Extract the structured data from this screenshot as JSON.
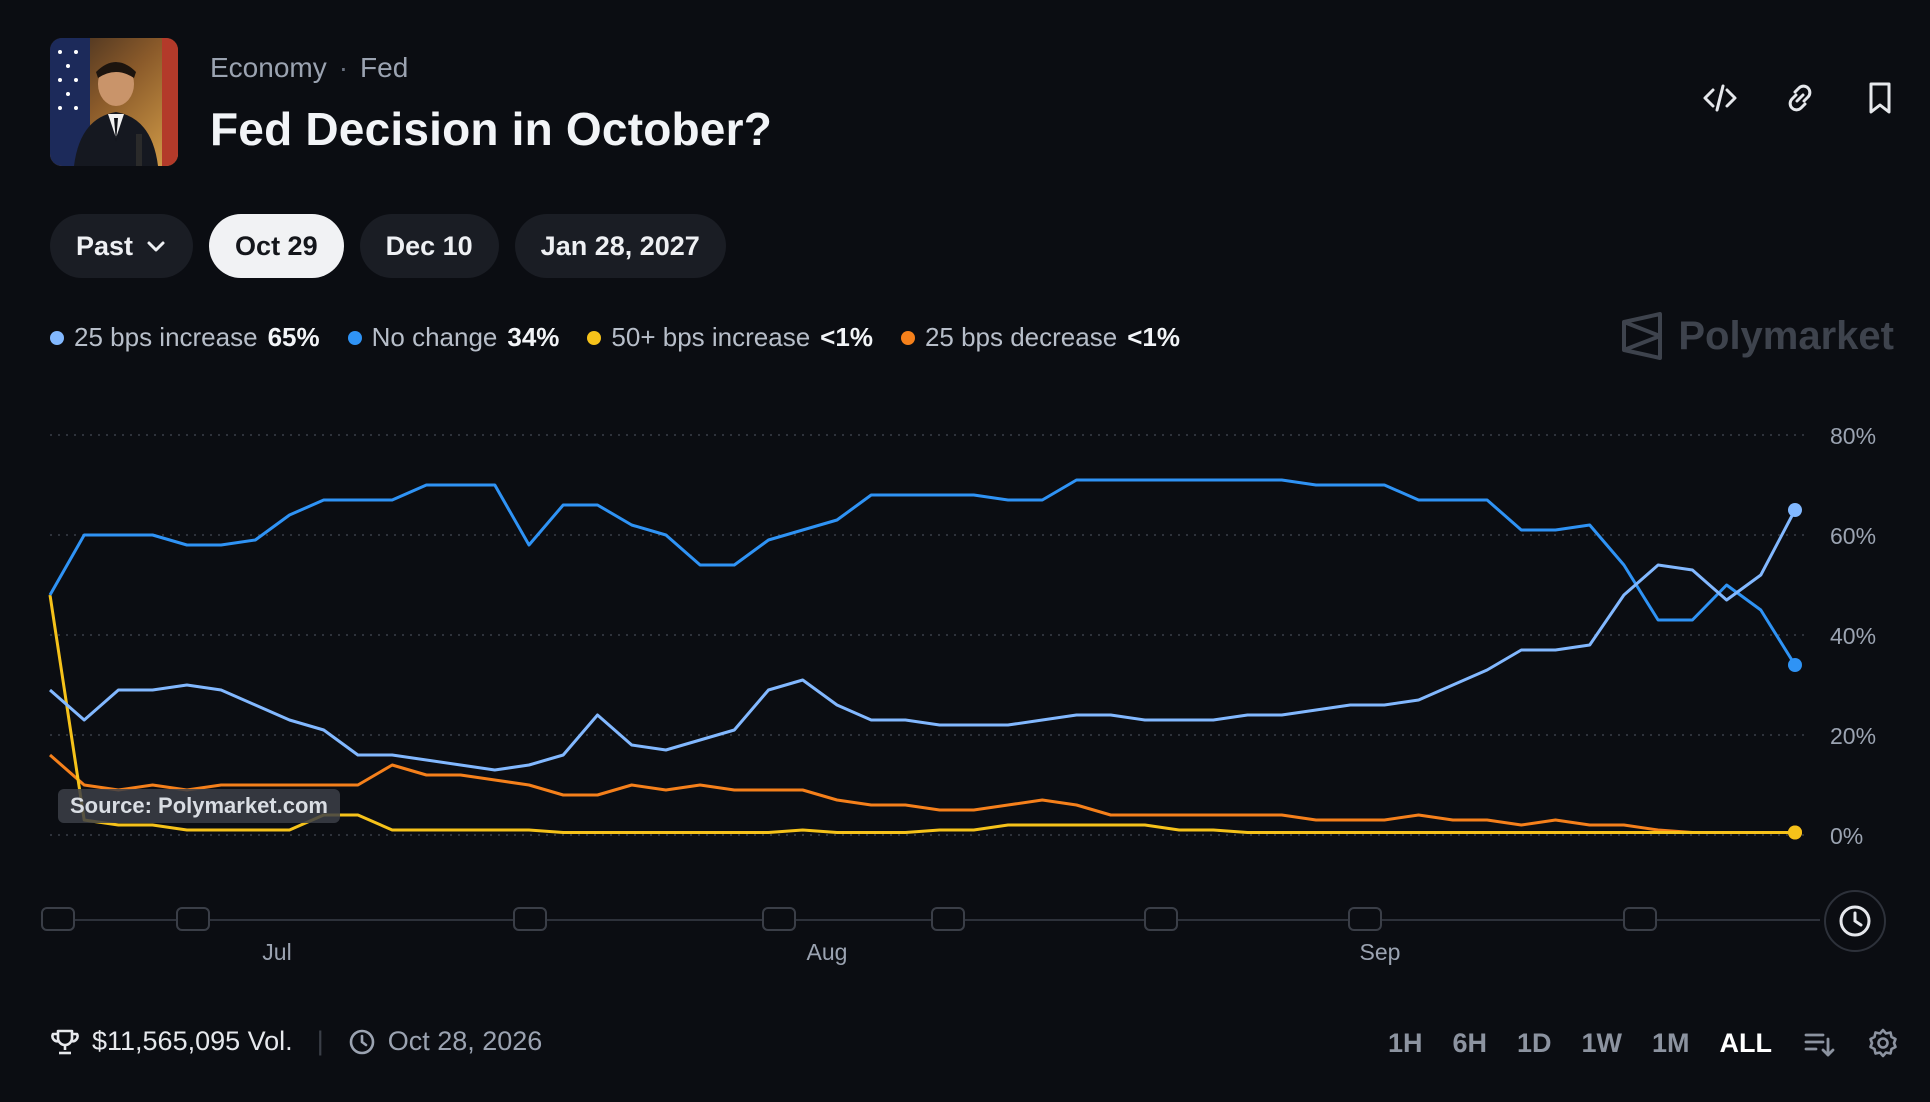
{
  "header": {
    "breadcrumb": [
      "Economy",
      "Fed"
    ],
    "title": "Fed Decision in October?",
    "actions": [
      "embed-icon",
      "link-icon",
      "bookmark-icon"
    ]
  },
  "pills": {
    "past_label": "Past",
    "dates": [
      "Oct 29",
      "Dec 10",
      "Jan 28, 2027"
    ],
    "active": "Oct 29"
  },
  "legend": [
    {
      "name": "25 bps increase",
      "value": "65%",
      "color": "#82b8ff"
    },
    {
      "name": "No change",
      "value": "34%",
      "color": "#2f93f5"
    },
    {
      "name": "50+ bps increase",
      "value": "<1%",
      "color": "#f6c21a"
    },
    {
      "name": "25 bps decrease",
      "value": "<1%",
      "color": "#f5801b"
    }
  ],
  "brand": "Polymarket",
  "source": "Source: Polymarket.com",
  "footer": {
    "volume": "$11,565,095 Vol.",
    "date": "Oct 28, 2026",
    "ranges": [
      "1H",
      "6H",
      "1D",
      "1W",
      "1M",
      "ALL"
    ],
    "active_range": "ALL"
  },
  "chart_data": {
    "type": "line",
    "x_ticks": [
      "Jul",
      "Aug",
      "Sep"
    ],
    "y_ticks": [
      "80%",
      "60%",
      "40%",
      "20%",
      "0%"
    ],
    "ylim": [
      0,
      80
    ],
    "grid": true,
    "legend_position": "top-left",
    "series": [
      {
        "name": "25 bps increase",
        "color": "#82b8ff",
        "values": [
          29,
          23,
          29,
          29,
          30,
          29,
          26,
          23,
          21,
          16,
          16,
          15,
          14,
          13,
          14,
          16,
          24,
          18,
          17,
          19,
          21,
          29,
          31,
          26,
          23,
          23,
          22,
          22,
          22,
          23,
          24,
          24,
          23,
          23,
          23,
          24,
          24,
          25,
          26,
          26,
          27,
          30,
          33,
          37,
          37,
          38,
          48,
          54,
          53,
          47,
          52,
          65
        ]
      },
      {
        "name": "No change",
        "color": "#2f93f5",
        "values": [
          48,
          60,
          60,
          60,
          58,
          58,
          59,
          64,
          67,
          67,
          67,
          70,
          70,
          70,
          58,
          66,
          66,
          62,
          60,
          54,
          54,
          59,
          61,
          63,
          68,
          68,
          68,
          68,
          67,
          67,
          71,
          71,
          71,
          71,
          71,
          71,
          71,
          70,
          70,
          70,
          67,
          67,
          67,
          61,
          61,
          62,
          54,
          43,
          43,
          50,
          45,
          34
        ]
      },
      {
        "name": "50+ bps increase",
        "color": "#f6c21a",
        "values": [
          48,
          3,
          2,
          2,
          1,
          1,
          1,
          1,
          4,
          4,
          1,
          1,
          1,
          1,
          1,
          0.5,
          0.5,
          0.5,
          0.5,
          0.5,
          0.5,
          0.5,
          1,
          0.5,
          0.5,
          0.5,
          1,
          1,
          2,
          2,
          2,
          2,
          2,
          1,
          1,
          0.5,
          0.5,
          0.5,
          0.5,
          0.5,
          0.5,
          0.5,
          0.5,
          0.5,
          0.5,
          0.5,
          0.5,
          0.5,
          0.5,
          0.5,
          0.5,
          0.5
        ]
      },
      {
        "name": "25 bps decrease",
        "color": "#f5801b",
        "values": [
          16,
          10,
          9,
          10,
          9,
          10,
          10,
          10,
          10,
          10,
          14,
          12,
          12,
          11,
          10,
          8,
          8,
          10,
          9,
          10,
          9,
          9,
          9,
          7,
          6,
          6,
          5,
          5,
          6,
          7,
          6,
          4,
          4,
          4,
          4,
          4,
          4,
          3,
          3,
          3,
          4,
          3,
          3,
          2,
          3,
          2,
          2,
          1,
          0.5,
          0.5,
          0.5,
          0.5
        ]
      }
    ]
  }
}
